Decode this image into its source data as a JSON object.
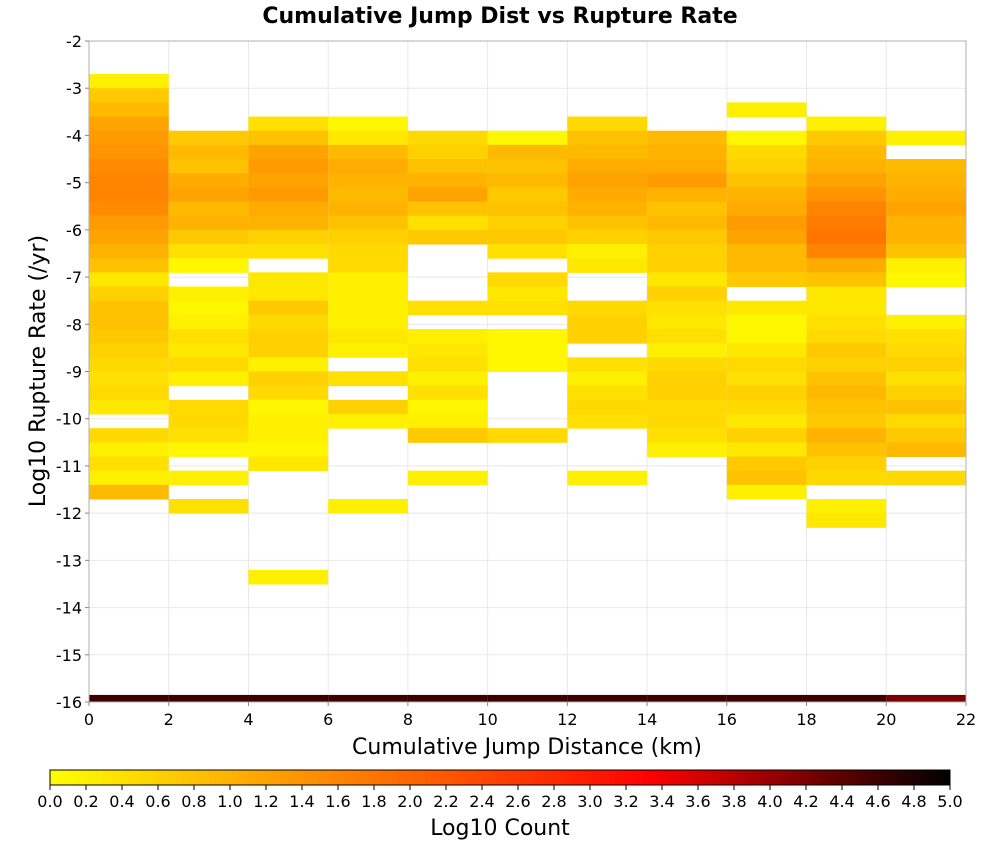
{
  "chart_data": {
    "type": "heatmap",
    "title": "Cumulative Jump Dist vs Rupture Rate",
    "xlabel": "Cumulative Jump Distance (km)",
    "ylabel": "Log10 Rupture Rate (/yr)",
    "xlim": [
      0,
      22
    ],
    "ylim": [
      -16,
      -2
    ],
    "x_ticks": [
      "0",
      "2",
      "4",
      "6",
      "8",
      "10",
      "12",
      "14",
      "16",
      "18",
      "20",
      "22"
    ],
    "y_ticks": [
      "-2",
      "-3",
      "-4",
      "-5",
      "-6",
      "-7",
      "-8",
      "-9",
      "-10",
      "-11",
      "-12",
      "-13",
      "-14",
      "-15",
      "-16"
    ],
    "grid": true,
    "x_bin_width": 2,
    "y_bin_width": 0.3,
    "colorbar": {
      "label": "Log10 Count",
      "range": [
        0,
        5
      ],
      "ticks": [
        "0.0",
        "0.2",
        "0.4",
        "0.6",
        "0.8",
        "1.0",
        "1.2",
        "1.4",
        "1.6",
        "1.8",
        "2.0",
        "2.2",
        "2.4",
        "2.6",
        "2.8",
        "3.0",
        "3.2",
        "3.4",
        "3.6",
        "3.8",
        "4.0",
        "4.2",
        "4.4",
        "4.6",
        "4.8",
        "5.0"
      ],
      "colors": [
        "#ffff00",
        "#ff7f00",
        "#ff0000",
        "#000000"
      ]
    },
    "columns": [
      {
        "x": 0,
        "y_start": -2.7,
        "values": [
          0.2,
          0.7,
          0.9,
          1.2,
          1.3,
          1.4,
          1.5,
          1.6,
          1.6,
          1.5,
          1.3,
          1.2,
          1.0,
          0.8,
          0.3,
          0.6,
          0.8,
          0.8,
          0.7,
          0.6,
          0.5,
          0.4,
          0.5,
          0.3,
          null,
          0.5,
          0.2,
          0.4,
          0.2,
          0.9
        ]
      },
      {
        "x": 2,
        "y_start": -3.9,
        "values": [
          0.7,
          0.9,
          0.8,
          1.1,
          1.2,
          0.9,
          1.0,
          0.7,
          0.4,
          0.1,
          null,
          0.2,
          0.1,
          0.2,
          0.4,
          0.3,
          0.5,
          0.2,
          null,
          0.5,
          0.5,
          0.4,
          0.1,
          null,
          0.2,
          null,
          0.4
        ]
      },
      {
        "x": 4,
        "y_start": -3.6,
        "values": [
          0.4,
          0.8,
          1.2,
          1.3,
          1.2,
          1.3,
          1.1,
          1.0,
          0.6,
          0.4,
          null,
          0.3,
          0.3,
          0.7,
          0.5,
          0.6,
          0.6,
          0.2,
          0.6,
          0.5,
          0.1,
          0.2,
          0.2,
          0.1,
          0.3,
          null,
          null,
          null,
          null,
          null,
          null,
          null,
          0.2
        ]
      },
      {
        "x": 6,
        "y_start": -3.6,
        "values": [
          0.1,
          0.3,
          0.9,
          1.1,
          1.0,
          0.9,
          1.0,
          0.8,
          0.6,
          0.5,
          0.5,
          0.2,
          0.2,
          0.2,
          0.2,
          0.3,
          0.2,
          null,
          0.4,
          null,
          0.6,
          0.2,
          null,
          null,
          null,
          null,
          null,
          0.2
        ]
      },
      {
        "x": 8,
        "y_start": -3.9,
        "values": [
          0.5,
          0.6,
          0.8,
          1.0,
          1.2,
          0.8,
          0.4,
          0.7,
          null,
          null,
          null,
          null,
          0.4,
          null,
          0.2,
          0.3,
          0.4,
          0.2,
          0.4,
          0.1,
          0.2,
          0.7,
          null,
          null,
          0.2
        ]
      },
      {
        "x": 10,
        "y_start": -3.9,
        "values": [
          0.1,
          0.9,
          0.8,
          0.9,
          0.7,
          0.8,
          0.6,
          0.7,
          0.4,
          null,
          0.5,
          0.3,
          0.4,
          null,
          0.1,
          0.1,
          0.1,
          null,
          null,
          null,
          null,
          0.5
        ]
      },
      {
        "x": 12,
        "y_start": -3.6,
        "values": [
          0.5,
          0.8,
          0.9,
          1.1,
          1.2,
          1.1,
          1.0,
          0.8,
          0.6,
          0.2,
          0.3,
          null,
          null,
          0.5,
          0.6,
          0.6,
          null,
          0.4,
          0.2,
          0.4,
          0.5,
          0.4,
          null,
          null,
          null,
          0.2
        ]
      },
      {
        "x": 14,
        "y_start": -3.9,
        "values": [
          0.9,
          1.0,
          1.1,
          1.3,
          1.0,
          0.8,
          0.9,
          0.7,
          0.6,
          0.6,
          0.3,
          0.6,
          0.4,
          0.3,
          0.4,
          0.2,
          0.5,
          0.6,
          0.6,
          0.5,
          0.5,
          0.4,
          0.2
        ]
      },
      {
        "x": 16,
        "y_start": -3.3,
        "values": [
          0.2,
          null,
          0.1,
          0.5,
          0.6,
          0.8,
          1.0,
          1.1,
          1.3,
          1.2,
          0.9,
          0.9,
          0.7,
          null,
          0.3,
          0.1,
          0.1,
          0.3,
          0.5,
          0.4,
          0.6,
          0.5,
          0.3,
          0.6,
          0.3,
          0.7,
          0.8,
          0.2
        ]
      },
      {
        "x": 18,
        "y_start": -3.6,
        "values": [
          0.2,
          0.7,
          0.9,
          1.0,
          1.2,
          1.4,
          1.6,
          1.7,
          1.8,
          1.6,
          1.1,
          0.8,
          0.3,
          0.3,
          0.4,
          0.5,
          0.7,
          0.6,
          0.8,
          0.9,
          0.8,
          0.7,
          1.0,
          0.8,
          0.6,
          0.5,
          null,
          0.2,
          0.3
        ]
      },
      {
        "x": 20,
        "y_start": -3.9,
        "values": [
          0.2,
          null,
          0.9,
          1.0,
          1.1,
          1.2,
          1.0,
          1.0,
          0.8,
          0.2,
          0.1,
          null,
          null,
          0.2,
          0.4,
          0.5,
          0.6,
          0.4,
          0.6,
          0.8,
          0.5,
          0.7,
          0.9,
          null,
          0.5
        ]
      }
    ],
    "baseline_row": {
      "y": -16,
      "values": [
        4.6,
        4.6,
        4.6,
        4.6,
        4.6,
        4.6,
        4.6,
        4.6,
        4.6,
        4.6,
        4.2
      ]
    }
  }
}
